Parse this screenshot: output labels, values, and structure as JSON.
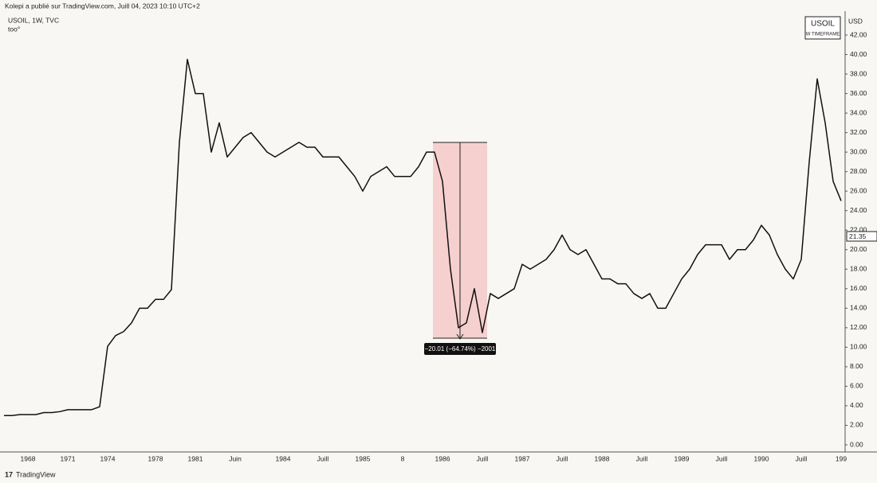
{
  "header": {
    "publisher": "Kolepi a publié sur TradingView.com, Juill 04, 2023 10:10 UTC+2",
    "symbol": "USOIL, 1W, TVC",
    "note": "too°",
    "currency": "USD",
    "badge_title": "USOIL",
    "badge_subtitle": "W TIMEFRAME",
    "footer": "TradingView"
  },
  "chart_data": {
    "type": "line",
    "color": "#111111",
    "categories": [
      null,
      null,
      null,
      "1968",
      null,
      null,
      null,
      null,
      "1971",
      null,
      null,
      null,
      null,
      "1974",
      null,
      null,
      null,
      null,
      null,
      "1978",
      null,
      null,
      null,
      null,
      "1981",
      null,
      null,
      null,
      null,
      "Juin",
      null,
      null,
      null,
      null,
      null,
      "1984",
      null,
      null,
      null,
      null,
      "Juill",
      null,
      null,
      null,
      null,
      "1985",
      null,
      null,
      null,
      null,
      "8",
      null,
      null,
      null,
      null,
      "1986",
      null,
      null,
      null,
      null,
      "Juill",
      null,
      null,
      null,
      null,
      "1987",
      null,
      null,
      null,
      null,
      "Juill",
      null,
      null,
      null,
      null,
      "1988",
      null,
      null,
      null,
      null,
      "Juill",
      null,
      null,
      null,
      null,
      "1989",
      null,
      null,
      null,
      null,
      "Juill",
      null,
      null,
      null,
      null,
      "1990",
      null,
      null,
      null,
      null,
      "Juill",
      null,
      null,
      null,
      null,
      "199"
    ],
    "values": [
      3.0,
      3.0,
      3.1,
      3.1,
      3.1,
      3.3,
      3.3,
      3.4,
      3.6,
      3.6,
      3.6,
      3.6,
      3.9,
      10.1,
      11.2,
      11.6,
      12.5,
      14.0,
      14.0,
      14.9,
      14.9,
      15.9,
      31.0,
      39.5,
      36.0,
      36.0,
      30.0,
      33.0,
      29.5,
      30.5,
      31.5,
      32.0,
      31.0,
      30.0,
      29.5,
      30.0,
      30.5,
      31.0,
      30.5,
      30.5,
      29.5,
      29.5,
      29.5,
      28.5,
      27.5,
      26.0,
      27.5,
      28.0,
      28.5,
      27.5,
      27.5,
      27.5,
      28.5,
      30.0,
      30.0,
      27.0,
      18.0,
      12.0,
      12.5,
      16.0,
      11.5,
      15.5,
      15.0,
      15.5,
      16.0,
      18.5,
      18.0,
      18.5,
      19.0,
      20.0,
      21.5,
      20.0,
      19.5,
      20.0,
      18.5,
      17.0,
      17.0,
      16.5,
      16.5,
      15.5,
      15.0,
      15.5,
      14.0,
      14.0,
      15.5,
      17.0,
      18.0,
      19.5,
      20.5,
      20.5,
      20.5,
      19.0,
      20.0,
      20.0,
      21.0,
      22.5,
      21.5,
      19.5,
      18.0,
      17.0,
      19.0,
      29.0,
      37.5,
      33.0,
      27.0,
      25.0
    ],
    "ylim": [
      0,
      42
    ],
    "yticks": [
      {
        "value": 0,
        "label": "0.00"
      },
      {
        "value": 2,
        "label": "2.00"
      },
      {
        "value": 4,
        "label": "4.00"
      },
      {
        "value": 6,
        "label": "6.00"
      },
      {
        "value": 8,
        "label": "8.00"
      },
      {
        "value": 10,
        "label": "10.00"
      },
      {
        "value": 12,
        "label": "12.00"
      },
      {
        "value": 14,
        "label": "14.00"
      },
      {
        "value": 16,
        "label": "16.00"
      },
      {
        "value": 18,
        "label": "18.00"
      },
      {
        "value": 20,
        "label": "20.00"
      },
      {
        "value": 22,
        "label": "22.00"
      },
      {
        "value": 24,
        "label": "24.00"
      },
      {
        "value": 26,
        "label": "26.00"
      },
      {
        "value": 28,
        "label": "28.00"
      },
      {
        "value": 30,
        "label": "30.00"
      },
      {
        "value": 32,
        "label": "32.00"
      },
      {
        "value": 34,
        "label": "34.00"
      },
      {
        "value": 36,
        "label": "36.00"
      },
      {
        "value": 38,
        "label": "38.00"
      },
      {
        "value": 40,
        "label": "40.00"
      },
      {
        "value": 42,
        "label": "42.00"
      }
    ],
    "last_price_label": "21.35",
    "measure_label": "−20.01 (−64.74%) −2001"
  }
}
